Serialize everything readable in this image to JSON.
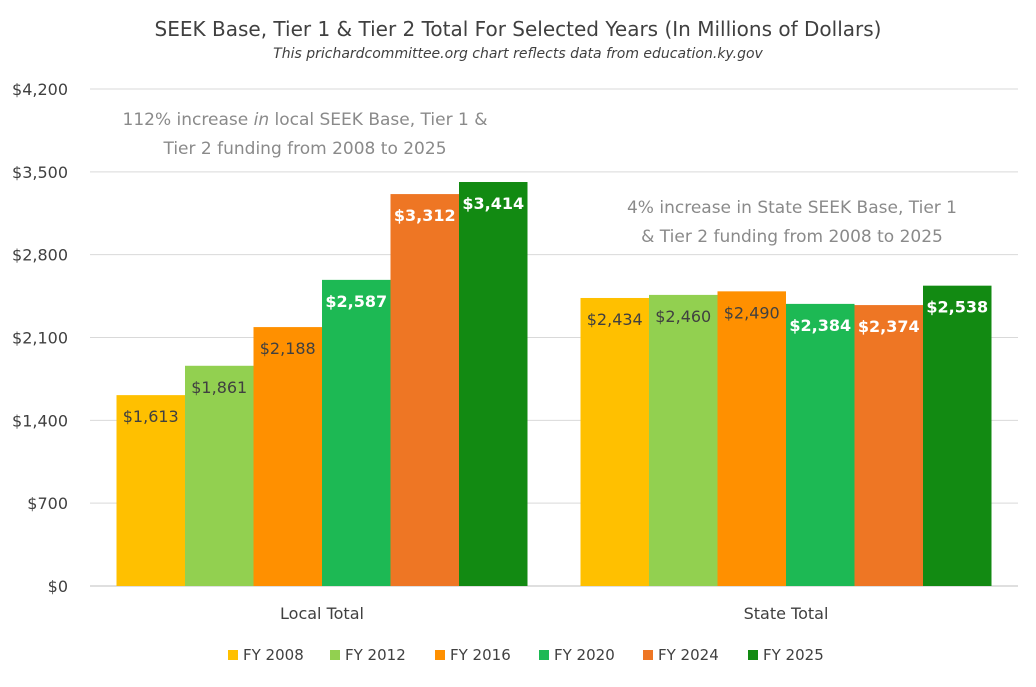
{
  "chart_data": {
    "type": "bar",
    "title": "SEEK Base, Tier 1 &  Tier 2 Total For Selected Years (In Millions of Dollars)",
    "subtitle": "This prichardcommittee.org chart reflects data from education.ky.gov",
    "categories": [
      "Local Total",
      "State Total"
    ],
    "ylim": [
      0,
      4200
    ],
    "yticks": [
      0,
      700,
      1400,
      2100,
      2800,
      3500,
      4200
    ],
    "ytick_labels": [
      "$0",
      "$700",
      "$1,400",
      "$2,100",
      "$2,800",
      "$3,500",
      "$4,200"
    ],
    "grid": true,
    "legend_position": "bottom",
    "series": [
      {
        "name": "FY 2008",
        "color": "#FFC000",
        "values": [
          1613,
          2434
        ],
        "labels": [
          "$1,613",
          "$2,434"
        ],
        "label_color": "#404040",
        "label_bold": false
      },
      {
        "name": "FY 2012",
        "color": "#92D050",
        "values": [
          1861,
          2460
        ],
        "labels": [
          "$1,861",
          "$2,460"
        ],
        "label_color": "#404040",
        "label_bold": false
      },
      {
        "name": "FY 2016",
        "color": "#FF9000",
        "values": [
          2188,
          2490
        ],
        "labels": [
          "$2,188",
          "$2,490"
        ],
        "label_color": "#404040",
        "label_bold": false
      },
      {
        "name": "FY 2020",
        "color": "#1DB954",
        "values": [
          2587,
          2384
        ],
        "labels": [
          "$2,587",
          "$2,384"
        ],
        "label_color": "#FFFFFF",
        "label_bold": true
      },
      {
        "name": "FY 2024",
        "color": "#EE7624",
        "values": [
          3312,
          2374
        ],
        "labels": [
          "$3,312",
          "$2,374"
        ],
        "label_color": "#FFFFFF",
        "label_bold": true
      },
      {
        "name": "FY 2025",
        "color": "#128A12",
        "values": [
          3414,
          2538
        ],
        "labels": [
          "$3,414",
          "$2,538"
        ],
        "label_color": "#FFFFFF",
        "label_bold": true
      }
    ],
    "annotations": [
      {
        "group": "Local Total",
        "lines": [
          "112% increase in local SEEK Base, Tier 1 &",
          "Tier 2 funding from 2008 to 2025"
        ],
        "italic_word": "in"
      },
      {
        "group": "State Total",
        "lines": [
          "4% increase in State  SEEK Base, Tier 1",
          "& Tier 2 funding from 2008 to 2025"
        ],
        "italic_word": ""
      }
    ]
  }
}
